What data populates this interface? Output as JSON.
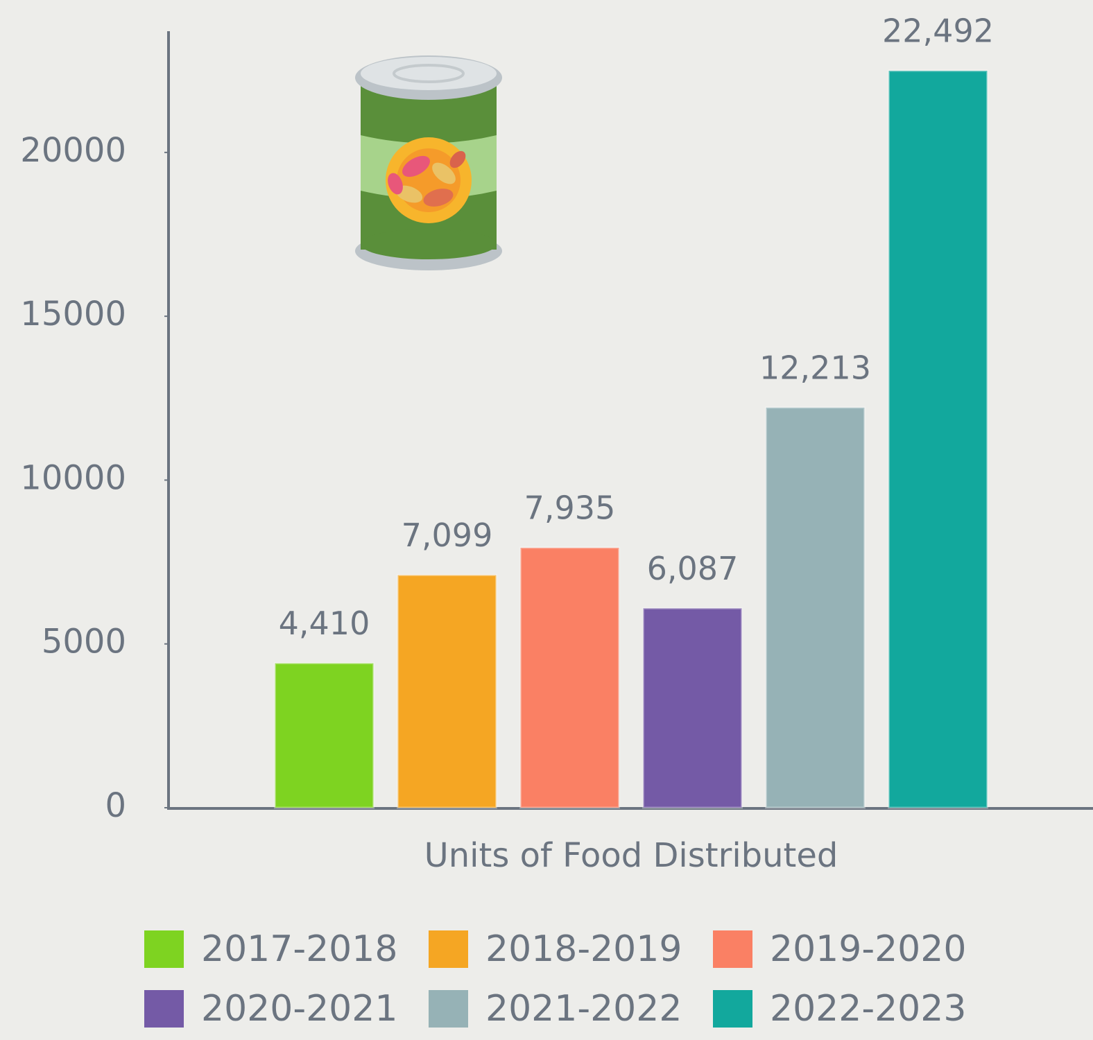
{
  "chart_data": {
    "type": "bar",
    "categories": [
      "Units of Food Distributed"
    ],
    "series": [
      {
        "name": "2017-2018",
        "color": "#7ed321",
        "values": [
          4410
        ],
        "value_labels": [
          "4,410"
        ]
      },
      {
        "name": "2018-2019",
        "color": "#f5a623",
        "values": [
          7099
        ],
        "value_labels": [
          "7,099"
        ]
      },
      {
        "name": "2019-2020",
        "color": "#fa8064",
        "values": [
          7935
        ],
        "value_labels": [
          "7,935"
        ]
      },
      {
        "name": "2020-2021",
        "color": "#745aa6",
        "values": [
          6087
        ],
        "value_labels": [
          "6,087"
        ]
      },
      {
        "name": "2021-2022",
        "color": "#96b2b6",
        "values": [
          12213
        ],
        "value_labels": [
          "12,213"
        ]
      },
      {
        "name": "2022-2023",
        "color": "#12a89d",
        "values": [
          22492
        ],
        "value_labels": [
          "22,492"
        ]
      }
    ],
    "ylim": [
      0,
      23700
    ],
    "yticks": [
      0,
      5000,
      10000,
      15000,
      20000
    ],
    "grid": false,
    "legend": "bottom"
  }
}
